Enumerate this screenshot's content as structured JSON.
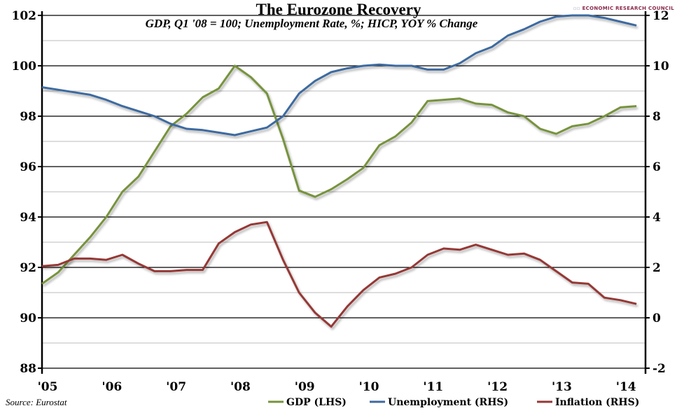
{
  "chart_data": {
    "type": "line",
    "title": "The Eurozone Recovery",
    "subtitle": "GDP, Q1 '08 = 100; Unemployment Rate, %; HICP, YOY % Change",
    "source": "Source: Eurostat",
    "logo": "ECONOMIC RESEARCH COUNCIL",
    "x_tick_labels": [
      "'05",
      "'06",
      "'07",
      "'08",
      "'09",
      "'10",
      "'11",
      "'12",
      "'13",
      "'14"
    ],
    "y_left": {
      "min": 88,
      "max": 102,
      "ticks": [
        "88",
        "90",
        "92",
        "94",
        "96",
        "98",
        "100",
        "102"
      ]
    },
    "y_right": {
      "min": -2,
      "max": 12,
      "ticks": [
        "-2",
        "0",
        "2",
        "4",
        "6",
        "8",
        "10",
        "12"
      ]
    },
    "x_start": "Q1 2005",
    "x_step": "quarter",
    "grid": true,
    "legend_position": "bottom-right",
    "series": [
      {
        "name": "GDP (LHS)",
        "axis": "left",
        "color": "#77933c",
        "values": [
          91.35,
          91.8,
          92.5,
          93.2,
          94.0,
          95.0,
          95.6,
          96.6,
          97.6,
          98.1,
          98.75,
          99.1,
          100.0,
          99.55,
          98.9,
          97.1,
          95.05,
          94.8,
          95.1,
          95.5,
          95.95,
          96.85,
          97.2,
          97.75,
          98.6,
          98.65,
          98.7,
          98.5,
          98.45,
          98.15,
          98.0,
          97.5,
          97.3,
          97.6,
          97.7,
          98.0,
          98.35,
          98.4
        ]
      },
      {
        "name": "Unemployment (RHS)",
        "axis": "right",
        "color": "#3d6aa0",
        "values": [
          9.15,
          9.05,
          8.95,
          8.85,
          8.65,
          8.4,
          8.2,
          8.0,
          7.7,
          7.5,
          7.45,
          7.35,
          7.25,
          7.4,
          7.55,
          8.0,
          8.9,
          9.4,
          9.75,
          9.9,
          10.0,
          10.05,
          10.0,
          10.0,
          9.85,
          9.85,
          10.1,
          10.5,
          10.75,
          11.2,
          11.45,
          11.75,
          11.95,
          12.0,
          12.0,
          11.9,
          11.75,
          11.6
        ]
      },
      {
        "name": "Inflation (RHS)",
        "axis": "right",
        "color": "#953735",
        "values": [
          2.05,
          2.1,
          2.35,
          2.35,
          2.3,
          2.5,
          2.15,
          1.85,
          1.85,
          1.9,
          1.9,
          2.95,
          3.4,
          3.7,
          3.8,
          2.3,
          1.0,
          0.2,
          -0.35,
          0.45,
          1.1,
          1.6,
          1.75,
          2.0,
          2.5,
          2.75,
          2.7,
          2.9,
          2.7,
          2.5,
          2.55,
          2.3,
          1.85,
          1.4,
          1.35,
          0.8,
          0.7,
          0.55
        ]
      }
    ]
  }
}
